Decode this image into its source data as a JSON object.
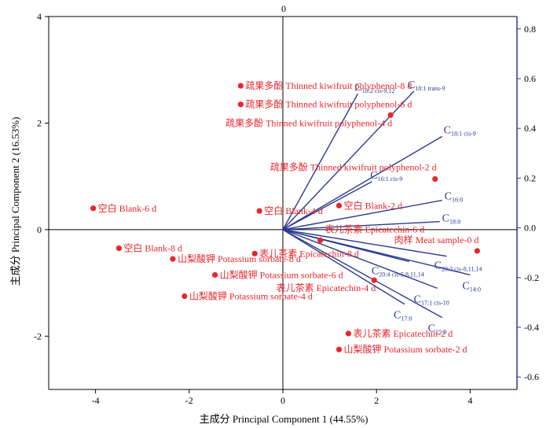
{
  "chart_data": {
    "type": "scatter",
    "subtype": "pca-biplot",
    "xlabel": "主成分 Principal Component 1 (44.55%)",
    "ylabel": "主成分 Principal Component 2 (16.53%)",
    "xlim": [
      -5,
      5
    ],
    "ylim": [
      -3,
      4
    ],
    "x_ticks": [
      "-4",
      "-2",
      "0",
      "2",
      "4"
    ],
    "y_ticks": [
      "-2",
      "0",
      "2",
      "4"
    ],
    "top_axis_label": "0",
    "right_axis": {
      "lim": [
        -0.65,
        0.85
      ],
      "ticks": [
        "-0.6",
        "-0.4",
        "-0.2",
        "0.0",
        "0.2",
        "0.4",
        "0.6",
        "0.8"
      ]
    },
    "colors": {
      "samples": "#e8262b",
      "loadings": "#2b3a8f",
      "axes": "#000000"
    },
    "samples": [
      {
        "label": "疏果多酚 Thinned kiwifruit polyphenol-8 d",
        "x": -0.9,
        "y": 2.7
      },
      {
        "label": "疏果多酚 Thinned kiwifruit polyphenol-6 d",
        "x": -0.9,
        "y": 2.35
      },
      {
        "label": "疏果多酚 Thinned kiwifruit polyphenol-4 d",
        "x": 2.3,
        "y": 2.15
      },
      {
        "label": "疏果多酚 Thinned kiwifruit polyphenol-2 d",
        "x": 3.25,
        "y": 0.95
      },
      {
        "label": "空白 Blank-6 d",
        "x": -4.05,
        "y": 0.4
      },
      {
        "label": "空白 Blank-4 d",
        "x": -0.5,
        "y": 0.35
      },
      {
        "label": "空白 Blank-2 d",
        "x": 1.2,
        "y": 0.45
      },
      {
        "label": "空白 Blank-8 d",
        "x": -3.5,
        "y": -0.35
      },
      {
        "label": "山梨酸钾 Potassium sorbate-8 d",
        "x": -2.35,
        "y": -0.55
      },
      {
        "label": "山梨酸钾 Potassium sorbate-6 d",
        "x": -1.45,
        "y": -0.85
      },
      {
        "label": "山梨酸钾 Potassium sorbate-4 d",
        "x": -2.1,
        "y": -1.25
      },
      {
        "label": "表儿茶素 Epicatechin-8 d",
        "x": -0.6,
        "y": -0.45
      },
      {
        "label": "表儿茶素 Epicatechin-6 d",
        "x": 0.8,
        "y": -0.2
      },
      {
        "label": "肉样 Meat sample-0 d",
        "x": 4.15,
        "y": -0.4
      },
      {
        "label": "表儿茶素 Epicatechin-4 d",
        "x": 1.95,
        "y": -0.95
      },
      {
        "label": "表儿茶素 Epicatechin-2 d",
        "x": 1.4,
        "y": -1.95
      },
      {
        "label": "山梨酸钾 Potassium sorbate-2 d",
        "x": 1.2,
        "y": -2.25
      }
    ],
    "loadings": [
      {
        "base": "C",
        "sub": "18:2 cis-9,12",
        "x": 1.6,
        "y": 2.55
      },
      {
        "base": "C",
        "sub": "18:1 trans-9",
        "x": 2.8,
        "y": 2.6
      },
      {
        "base": "C",
        "sub": "18:1 cis-9",
        "x": 3.4,
        "y": 1.75
      },
      {
        "base": "C",
        "sub": "16:1 cis-9",
        "x": 1.9,
        "y": 0.9
      },
      {
        "base": "C",
        "sub": "16:0",
        "x": 3.4,
        "y": 0.55
      },
      {
        "base": "C",
        "sub": "18:0",
        "x": 3.35,
        "y": 0.15
      },
      {
        "base": "C",
        "sub": "20:3 cis-8,11,14",
        "x": 3.5,
        "y": -0.5
      },
      {
        "base": "C",
        "sub": "20:4 cis-5,8,11,14",
        "x": 2.7,
        "y": -0.6
      },
      {
        "base": "C",
        "sub": "14:0",
        "x": 4.0,
        "y": -0.85
      },
      {
        "base": "C",
        "sub": "17:1 cis-10",
        "x": 3.3,
        "y": -1.1
      },
      {
        "base": "C",
        "sub": "17:0",
        "x": 2.6,
        "y": -1.4
      },
      {
        "base": "C",
        "sub": "15:0",
        "x": 3.4,
        "y": -1.65
      }
    ]
  }
}
